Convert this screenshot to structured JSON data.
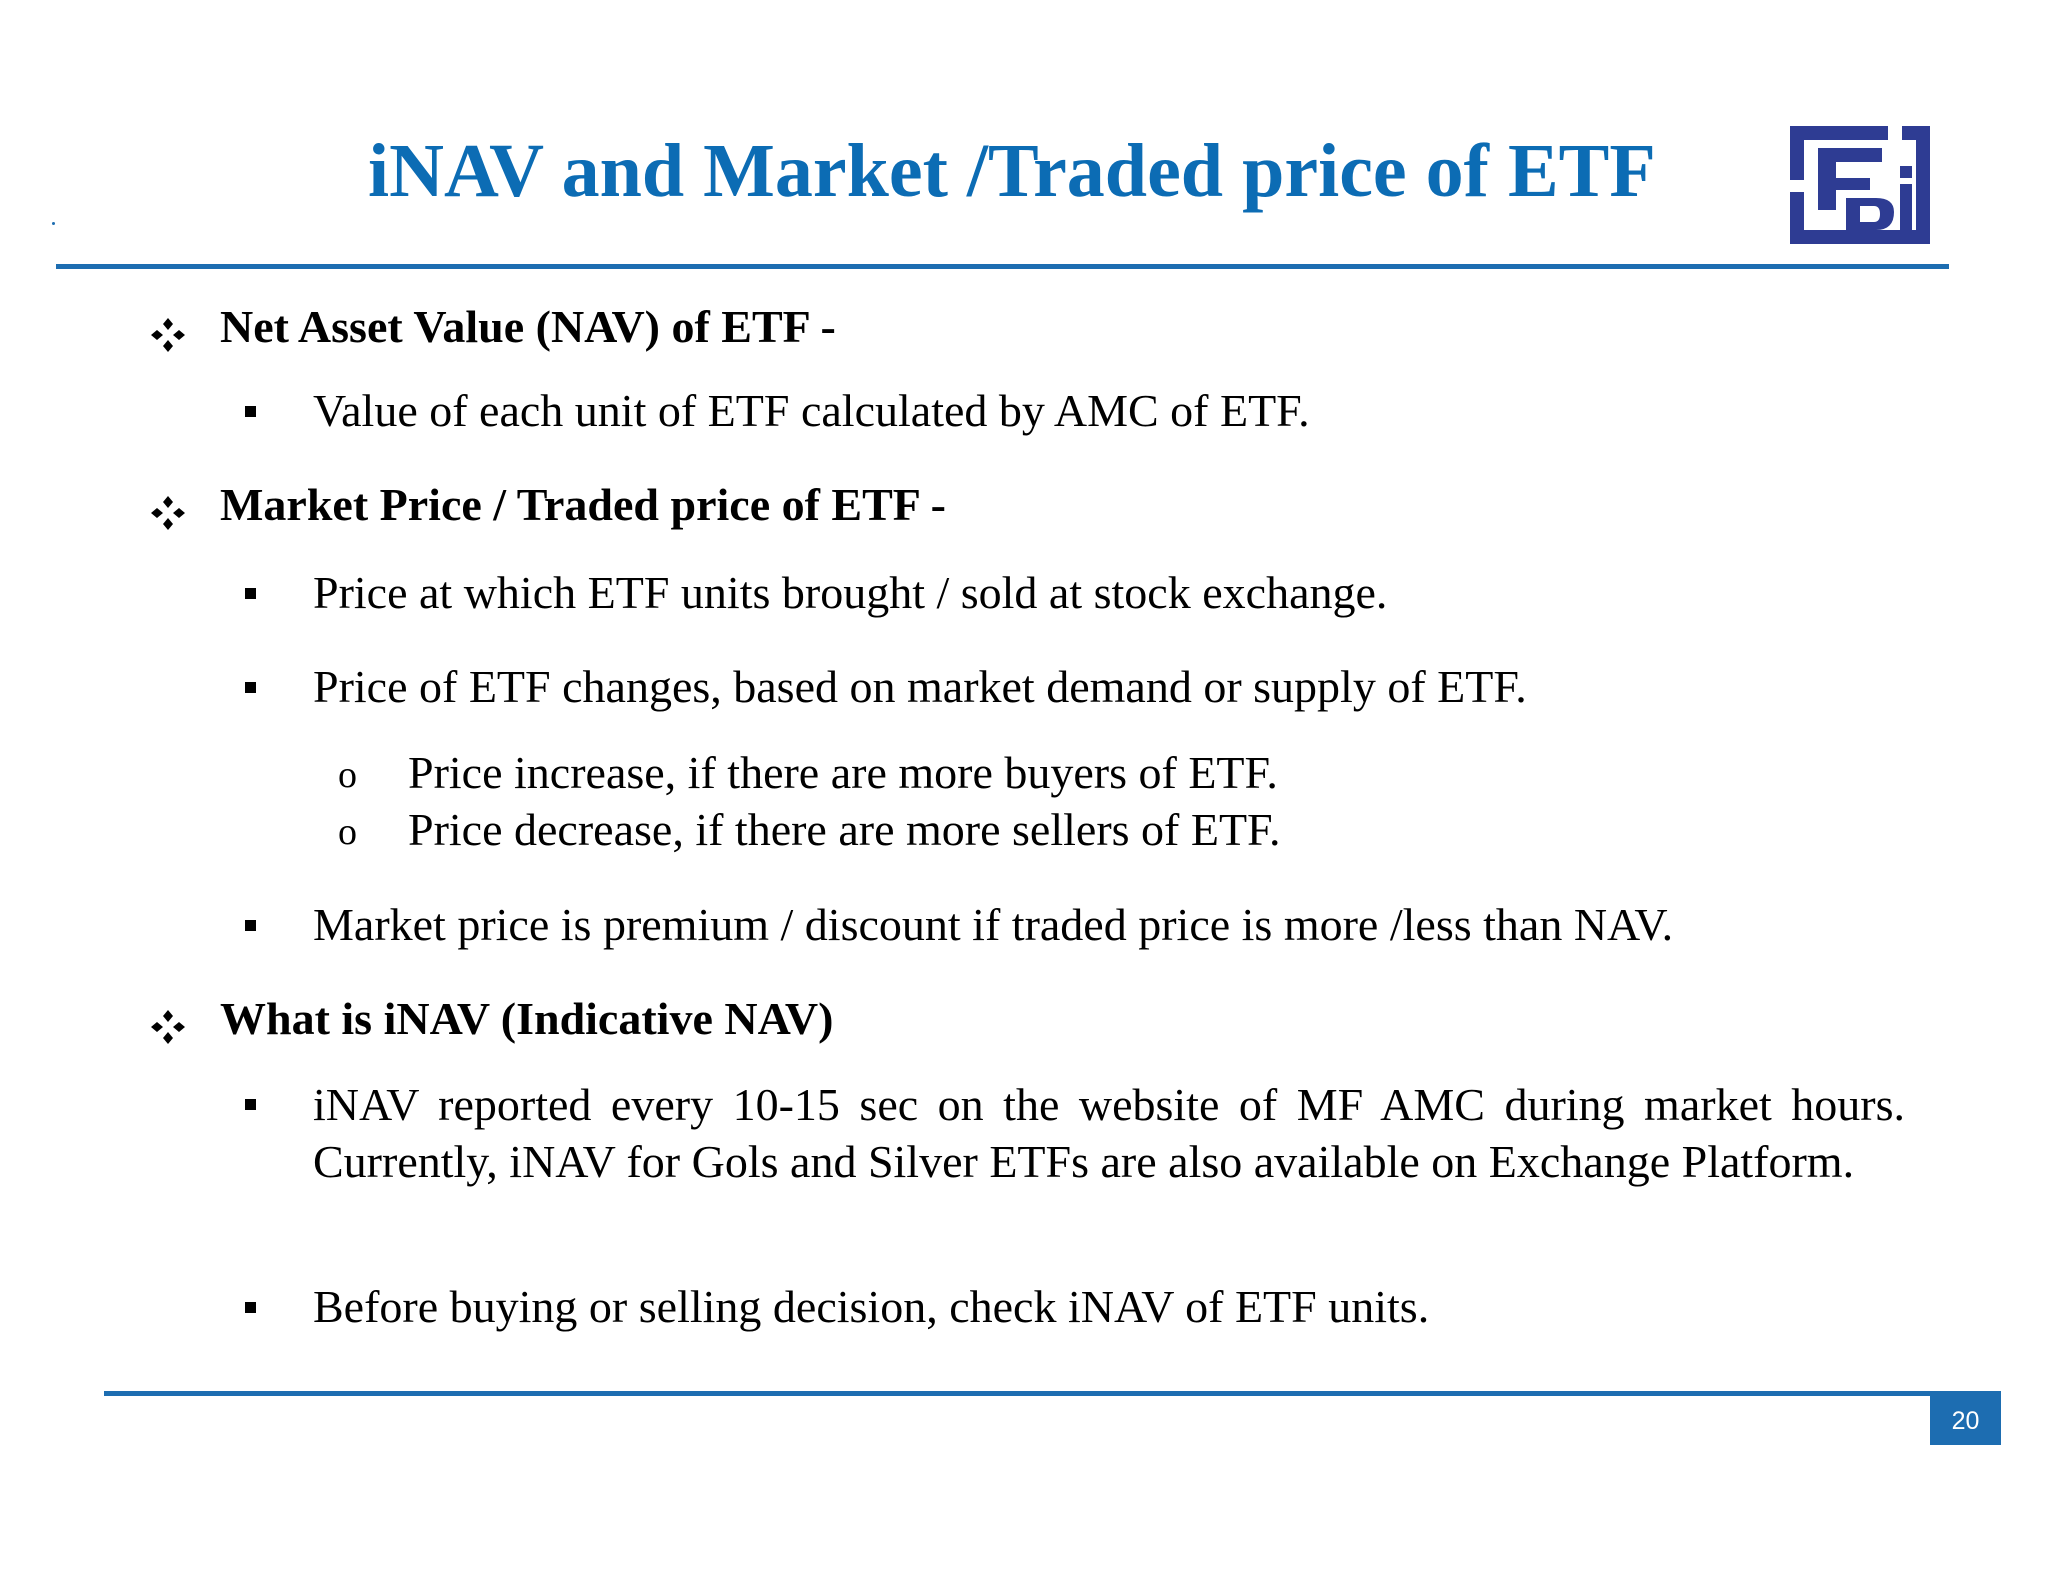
{
  "slide": {
    "title": "iNAV and Market /Traded price of ETF",
    "page_number": "20",
    "logo_icon": "sebi-logo-icon",
    "accent_color": "#1D6DB1",
    "title_color": "#0C6CB4"
  },
  "sections": [
    {
      "heading": "Net Asset Value (NAV) of ETF -",
      "bullets": [
        "Value of each unit of ETF calculated by AMC of ETF."
      ]
    },
    {
      "heading": "Market Price / Traded price of ETF  -",
      "bullets": [
        "Price at which ETF units brought / sold at stock exchange.",
        "Price of ETF changes, based on market demand or supply of ETF.",
        "Market price is premium / discount if traded price is more /less than NAV."
      ],
      "sub_bullets": [
        "Price increase, if there are more buyers of ETF.",
        "Price decrease, if there are more sellers of ETF."
      ],
      "sub_marker": "o"
    },
    {
      "heading": "What is iNAV (Indicative NAV)",
      "bullets": [
        "iNAV reported every 10-15 sec on the website of MF AMC during market hours. Currently, iNAV for Gols and Silver ETFs are also available on Exchange Platform.",
        "Before buying or selling decision, check iNAV of ETF units."
      ]
    }
  ]
}
